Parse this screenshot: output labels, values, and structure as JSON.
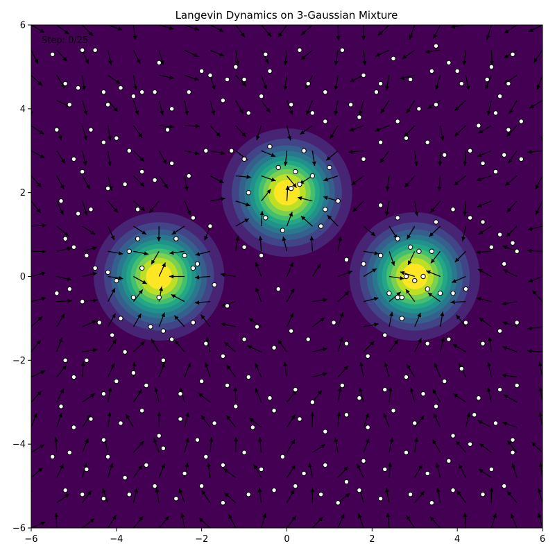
{
  "chart_data": {
    "type": "scatter",
    "title": "Langevin Dynamics on 3-Gaussian Mixture",
    "annotation": "Step: 0/25",
    "xlim": [
      -6,
      6
    ],
    "ylim": [
      -6,
      6
    ],
    "xticks": [
      -6,
      -4,
      -2,
      0,
      2,
      4,
      6
    ],
    "yticks": [
      -6,
      -4,
      -2,
      0,
      2,
      4,
      6
    ],
    "xtick_labels": [
      "−6",
      "−4",
      "−2",
      "0",
      "2",
      "4",
      "6"
    ],
    "ytick_labels": [
      "−6",
      "−4",
      "−2",
      "0",
      "2",
      "4",
      "6"
    ],
    "grid": false,
    "background": "density contour of 3-Gaussian mixture (viridis)",
    "mixture_components": [
      {
        "mean": [
          -3,
          0
        ],
        "sigma": 0.7
      },
      {
        "mean": [
          0,
          2
        ],
        "sigma": 0.7
      },
      {
        "mean": [
          3,
          0
        ],
        "sigma": 0.7
      }
    ],
    "colormap": [
      "#440154",
      "#482475",
      "#414487",
      "#355f8d",
      "#2a788e",
      "#21918c",
      "#22a884",
      "#44bf70",
      "#7ad151",
      "#bddf26",
      "#fde725"
    ],
    "quiver": "score-field arrows on 21x21 grid (black)",
    "particles": [
      [
        -5.5,
        5.3
      ],
      [
        -4.8,
        5.4
      ],
      [
        -4.5,
        5.4
      ],
      [
        -3.0,
        5.1
      ],
      [
        -2.0,
        4.9
      ],
      [
        -1.4,
        4.7
      ],
      [
        -1.8,
        4.8
      ],
      [
        -1.2,
        5.0
      ],
      [
        -0.5,
        5.3
      ],
      [
        -0.4,
        4.9
      ],
      [
        0.3,
        5.4
      ],
      [
        0.5,
        4.6
      ],
      [
        0.9,
        4.4
      ],
      [
        1.3,
        5.4
      ],
      [
        1.8,
        4.8
      ],
      [
        2.2,
        4.6
      ],
      [
        2.5,
        5.2
      ],
      [
        2.9,
        4.7
      ],
      [
        3.4,
        4.9
      ],
      [
        3.5,
        5.5
      ],
      [
        3.8,
        5.1
      ],
      [
        4.0,
        4.9
      ],
      [
        4.1,
        4.6
      ],
      [
        4.7,
        4.7
      ],
      [
        4.8,
        5.0
      ],
      [
        5.0,
        4.3
      ],
      [
        5.2,
        4.6
      ],
      [
        5.3,
        5.3
      ],
      [
        -5.2,
        4.6
      ],
      [
        -5.1,
        4.1
      ],
      [
        -4.9,
        4.5
      ],
      [
        -4.6,
        3.5
      ],
      [
        -4.3,
        4.4
      ],
      [
        -4.2,
        4.1
      ],
      [
        -3.9,
        4.5
      ],
      [
        -3.6,
        4.3
      ],
      [
        -3.4,
        4.4
      ],
      [
        -3.1,
        4.4
      ],
      [
        -2.8,
        3.5
      ],
      [
        -2.7,
        4.0
      ],
      [
        -2.3,
        4.4
      ],
      [
        -1.5,
        4.2
      ],
      [
        -1.0,
        4.7
      ],
      [
        -0.9,
        3.9
      ],
      [
        -0.6,
        4.3
      ],
      [
        0.1,
        4.1
      ],
      [
        0.6,
        3.9
      ],
      [
        0.9,
        3.7
      ],
      [
        1.5,
        4.1
      ],
      [
        1.7,
        3.8
      ],
      [
        2.1,
        4.4
      ],
      [
        2.6,
        3.7
      ],
      [
        3.1,
        4.0
      ],
      [
        3.5,
        4.1
      ],
      [
        4.5,
        3.6
      ],
      [
        4.9,
        3.9
      ],
      [
        5.2,
        3.5
      ],
      [
        5.5,
        3.7
      ],
      [
        -5.4,
        3.5
      ],
      [
        -5.0,
        2.8
      ],
      [
        -4.8,
        2.5
      ],
      [
        -4.3,
        3.2
      ],
      [
        -4.0,
        3.3
      ],
      [
        -3.7,
        3.0
      ],
      [
        -3.4,
        2.5
      ],
      [
        -3.1,
        2.3
      ],
      [
        -2.7,
        2.7
      ],
      [
        -2.3,
        2.4
      ],
      [
        -1.9,
        3.0
      ],
      [
        -1.3,
        3.0
      ],
      [
        -1.0,
        2.8
      ],
      [
        1.8,
        2.8
      ],
      [
        2.2,
        3.2
      ],
      [
        2.8,
        3.3
      ],
      [
        3.3,
        3.2
      ],
      [
        3.7,
        2.9
      ],
      [
        4.3,
        3.0
      ],
      [
        4.6,
        2.7
      ],
      [
        4.9,
        2.5
      ],
      [
        5.1,
        2.9
      ],
      [
        5.5,
        2.8
      ],
      [
        -5.3,
        1.8
      ],
      [
        -4.9,
        1.5
      ],
      [
        -4.6,
        1.6
      ],
      [
        -4.2,
        2.1
      ],
      [
        -3.8,
        2.2
      ],
      [
        -3.5,
        1.6
      ],
      [
        -2.2,
        1.4
      ],
      [
        -1.8,
        1.2
      ],
      [
        2.2,
        1.7
      ],
      [
        2.6,
        1.4
      ],
      [
        3.5,
        1.3
      ],
      [
        3.9,
        1.6
      ],
      [
        4.3,
        1.4
      ],
      [
        4.6,
        1.3
      ],
      [
        5.0,
        1.0
      ],
      [
        5.3,
        0.8
      ],
      [
        -5.2,
        0.9
      ],
      [
        -5.0,
        0.7
      ],
      [
        -4.7,
        0.5
      ],
      [
        -4.5,
        0.2
      ],
      [
        -4.2,
        0.1
      ],
      [
        -4.0,
        -0.1
      ],
      [
        -3.6,
        -0.5
      ],
      [
        -2.1,
        0.3
      ],
      [
        -1.7,
        -0.2
      ],
      [
        -1.4,
        -0.7
      ],
      [
        -1.0,
        0.7
      ],
      [
        -0.6,
        0.5
      ],
      [
        -0.2,
        -0.3
      ],
      [
        1.4,
        0.4
      ],
      [
        1.8,
        0.3
      ],
      [
        2.2,
        0.5
      ],
      [
        2.6,
        -0.5
      ],
      [
        3.4,
        0.6
      ],
      [
        3.9,
        -0.4
      ],
      [
        4.2,
        -0.3
      ],
      [
        4.8,
        0.7
      ],
      [
        5.1,
        0.3
      ],
      [
        5.4,
        0.6
      ],
      [
        -5.4,
        -0.4
      ],
      [
        -5.1,
        -0.3
      ],
      [
        -4.8,
        -0.6
      ],
      [
        -4.4,
        -1.1
      ],
      [
        -4.1,
        -1.4
      ],
      [
        -3.8,
        -1.8
      ],
      [
        -2.7,
        -1.5
      ],
      [
        -2.2,
        -1.1
      ],
      [
        -1.9,
        -1.6
      ],
      [
        -1.5,
        -1.9
      ],
      [
        -1.0,
        -1.5
      ],
      [
        -0.7,
        -1.2
      ],
      [
        -0.3,
        -1.7
      ],
      [
        0.1,
        -1.3
      ],
      [
        0.5,
        -1.5
      ],
      [
        1.1,
        -1.1
      ],
      [
        1.4,
        -1.6
      ],
      [
        1.9,
        -1.9
      ],
      [
        2.3,
        -1.4
      ],
      [
        2.7,
        -1.0
      ],
      [
        3.3,
        -1.6
      ],
      [
        3.8,
        -1.5
      ],
      [
        4.2,
        -1.1
      ],
      [
        4.6,
        -1.6
      ],
      [
        5.0,
        -1.3
      ],
      [
        5.4,
        -1.1
      ],
      [
        -5.2,
        -2.0
      ],
      [
        -5.0,
        -2.4
      ],
      [
        -4.7,
        -2.0
      ],
      [
        -4.3,
        -2.8
      ],
      [
        -4.0,
        -2.5
      ],
      [
        -3.6,
        -2.3
      ],
      [
        -3.3,
        -2.6
      ],
      [
        -2.9,
        -2.0
      ],
      [
        -2.5,
        -2.8
      ],
      [
        -2.0,
        -2.5
      ],
      [
        -1.4,
        -2.6
      ],
      [
        -0.9,
        -2.4
      ],
      [
        -0.4,
        -2.9
      ],
      [
        0.2,
        -2.7
      ],
      [
        0.6,
        -3.0
      ],
      [
        1.3,
        -2.6
      ],
      [
        1.7,
        -2.9
      ],
      [
        2.3,
        -2.7
      ],
      [
        2.8,
        -2.4
      ],
      [
        3.2,
        -2.8
      ],
      [
        3.7,
        -2.5
      ],
      [
        4.1,
        -2.2
      ],
      [
        4.5,
        -2.9
      ],
      [
        5.0,
        -2.7
      ],
      [
        5.4,
        -2.6
      ],
      [
        -5.3,
        -3.1
      ],
      [
        -5.0,
        -3.6
      ],
      [
        -4.6,
        -3.4
      ],
      [
        -4.3,
        -3.9
      ],
      [
        -3.9,
        -3.5
      ],
      [
        -3.4,
        -3.2
      ],
      [
        -3.0,
        -3.8
      ],
      [
        -2.5,
        -3.4
      ],
      [
        -2.1,
        -3.9
      ],
      [
        -1.7,
        -3.5
      ],
      [
        -1.2,
        -3.1
      ],
      [
        -0.8,
        -3.6
      ],
      [
        -0.3,
        -3.2
      ],
      [
        0.3,
        -3.4
      ],
      [
        0.9,
        -3.7
      ],
      [
        1.4,
        -3.3
      ],
      [
        1.9,
        -3.6
      ],
      [
        2.5,
        -3.2
      ],
      [
        3.0,
        -3.5
      ],
      [
        3.5,
        -3.1
      ],
      [
        3.9,
        -3.8
      ],
      [
        4.4,
        -3.3
      ],
      [
        4.9,
        -3.5
      ],
      [
        5.3,
        -3.9
      ],
      [
        -5.5,
        -4.3
      ],
      [
        -5.1,
        -4.2
      ],
      [
        -4.7,
        -4.6
      ],
      [
        -4.2,
        -4.3
      ],
      [
        -3.8,
        -4.8
      ],
      [
        -3.3,
        -4.5
      ],
      [
        -2.9,
        -4.1
      ],
      [
        -2.4,
        -4.7
      ],
      [
        -1.9,
        -4.3
      ],
      [
        -1.5,
        -4.5
      ],
      [
        -1.0,
        -4.2
      ],
      [
        -0.6,
        -4.6
      ],
      [
        -0.1,
        -4.3
      ],
      [
        0.4,
        -4.7
      ],
      [
        0.9,
        -4.5
      ],
      [
        1.4,
        -4.9
      ],
      [
        1.8,
        -4.4
      ],
      [
        2.3,
        -4.6
      ],
      [
        2.8,
        -4.2
      ],
      [
        3.3,
        -4.7
      ],
      [
        3.8,
        -4.4
      ],
      [
        4.3,
        -4.0
      ],
      [
        4.8,
        -4.6
      ],
      [
        5.3,
        -4.2
      ],
      [
        -5.2,
        -5.1
      ],
      [
        -4.8,
        -5.2
      ],
      [
        -4.3,
        -5.3
      ],
      [
        -3.7,
        -5.2
      ],
      [
        -3.1,
        -5.0
      ],
      [
        -2.6,
        -5.3
      ],
      [
        -2.0,
        -5.0
      ],
      [
        -1.5,
        -5.4
      ],
      [
        -0.9,
        -5.2
      ],
      [
        -0.3,
        -5.1
      ],
      [
        0.2,
        -5.0
      ],
      [
        0.8,
        -5.2
      ],
      [
        1.2,
        -5.4
      ],
      [
        1.7,
        -5.1
      ],
      [
        2.2,
        -5.3
      ],
      [
        2.9,
        -5.2
      ],
      [
        3.4,
        -5.4
      ],
      [
        3.9,
        -5.1
      ],
      [
        4.6,
        -5.2
      ],
      [
        5.1,
        -5.0
      ],
      [
        -3.4,
        0.2
      ],
      [
        -3.0,
        -0.5
      ],
      [
        -2.6,
        0.9
      ],
      [
        -3.9,
        -1.0
      ],
      [
        -2.4,
        0.5
      ],
      [
        -3.2,
        -1.2
      ],
      [
        -3.7,
        0.6
      ],
      [
        -3.5,
        0.9
      ],
      [
        -2.2,
        0.2
      ],
      [
        -2.9,
        -1.3
      ],
      [
        0.1,
        2.1
      ],
      [
        0.3,
        2.2
      ],
      [
        -0.2,
        2.6
      ],
      [
        0.6,
        2.4
      ],
      [
        -0.5,
        1.4
      ],
      [
        0.9,
        1.6
      ],
      [
        0.2,
        2.5
      ],
      [
        -0.1,
        1.1
      ],
      [
        1.2,
        1.8
      ],
      [
        0.4,
        3.0
      ],
      [
        -0.4,
        3.1
      ],
      [
        0.8,
        1.2
      ],
      [
        -0.9,
        2.0
      ],
      [
        1.0,
        2.6
      ],
      [
        3.0,
        -0.1
      ],
      [
        3.2,
        0.0
      ],
      [
        2.8,
        0.0
      ],
      [
        2.6,
        0.9
      ],
      [
        3.3,
        -0.3
      ],
      [
        2.4,
        -0.4
      ],
      [
        3.6,
        -0.4
      ],
      [
        2.9,
        0.7
      ],
      [
        3.1,
        0.6
      ],
      [
        2.7,
        -0.5
      ]
    ]
  }
}
